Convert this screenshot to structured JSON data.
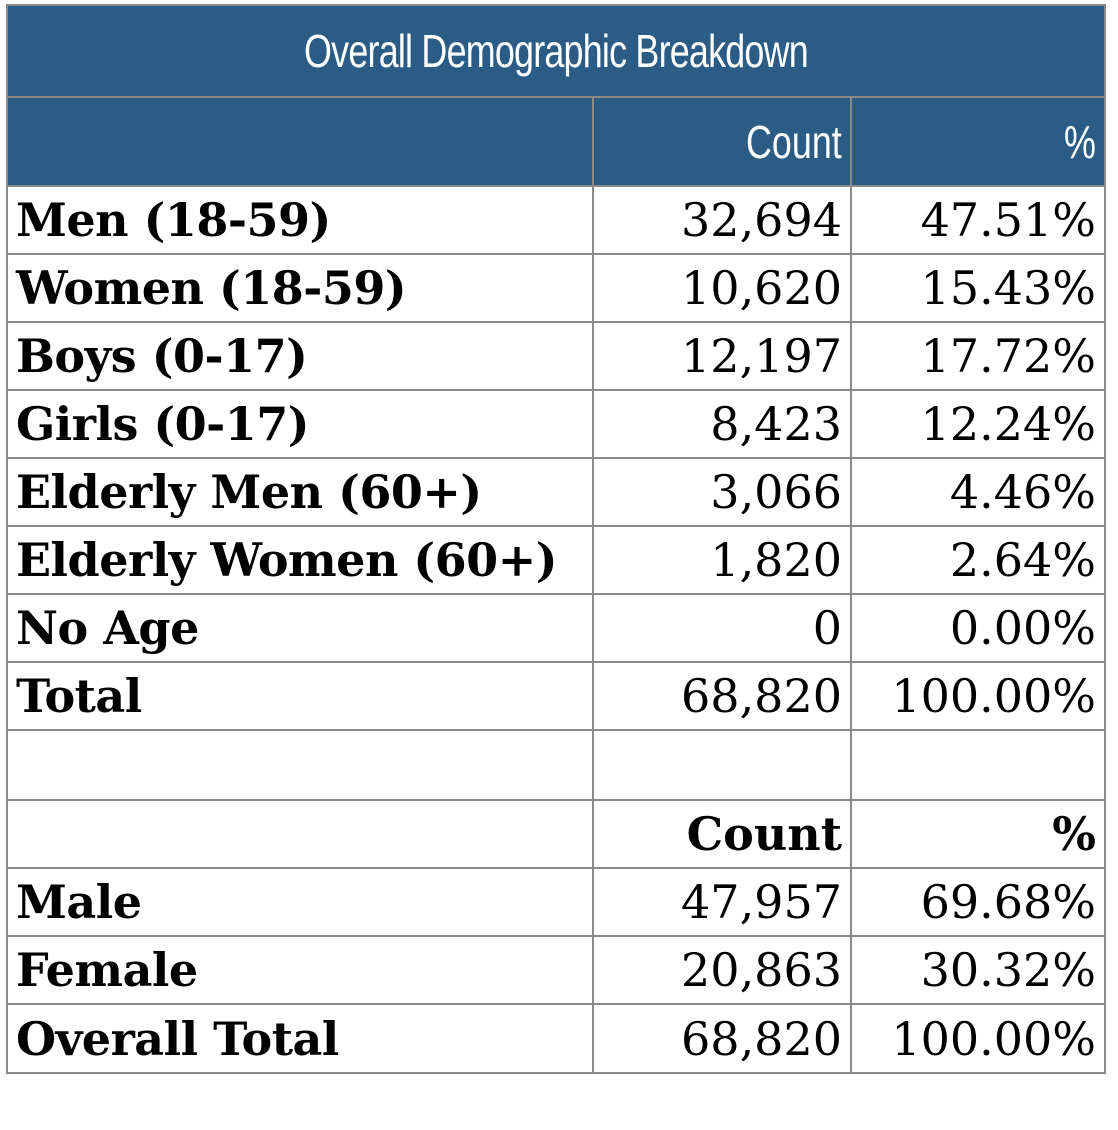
{
  "title": "Overall Demographic Breakdown",
  "header": {
    "label": "",
    "count": "Count",
    "pct": "%"
  },
  "rows": [
    {
      "label": "Men (18-59)",
      "count": "32,694",
      "pct": "47.51%"
    },
    {
      "label": "Women (18-59)",
      "count": "10,620",
      "pct": "15.43%"
    },
    {
      "label": "Boys (0-17)",
      "count": "12,197",
      "pct": "17.72%"
    },
    {
      "label": "Girls (0-17)",
      "count": "8,423",
      "pct": "12.24%"
    },
    {
      "label": "Elderly Men (60+)",
      "count": "3,066",
      "pct": "4.46%"
    },
    {
      "label": "Elderly Women (60+)",
      "count": "1,820",
      "pct": "2.64%"
    },
    {
      "label": "No Age",
      "count": "0",
      "pct": "0.00%"
    },
    {
      "label": "Total",
      "count": "68,820",
      "pct": "100.00%"
    }
  ],
  "sub_header": {
    "label": "",
    "count": "Count",
    "pct": "%"
  },
  "gender_rows": [
    {
      "label": "Male",
      "count": "47,957",
      "pct": "69.68%"
    },
    {
      "label": "Female",
      "count": "20,863",
      "pct": "30.32%"
    },
    {
      "label": "Overall Total",
      "count": "68,820",
      "pct": "100.00%"
    }
  ],
  "colors": {
    "header_bg": "#2a5c85",
    "header_text": "#ffffff",
    "grid": "#8a8a8a"
  }
}
